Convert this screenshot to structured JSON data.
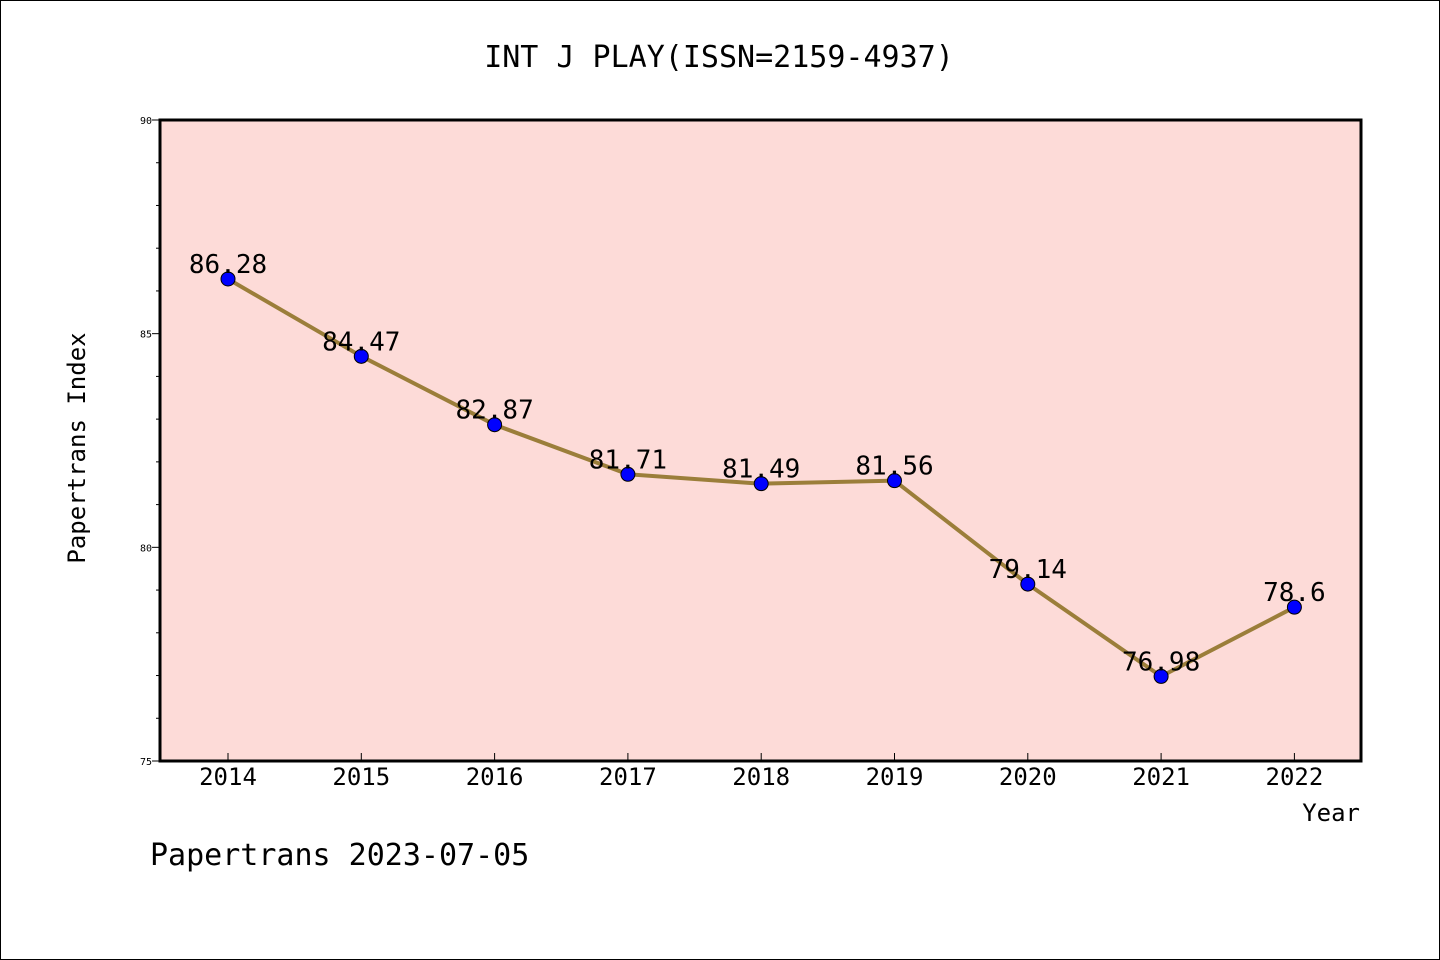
{
  "chart_data": {
    "type": "line",
    "title": "INT J PLAY(ISSN=2159-4937)",
    "xlabel": "Year",
    "ylabel": "Papertrans Index",
    "categories": [
      "2014",
      "2015",
      "2016",
      "2017",
      "2018",
      "2019",
      "2020",
      "2021",
      "2022"
    ],
    "values": [
      86.28,
      84.47,
      82.87,
      81.71,
      81.49,
      81.56,
      79.14,
      76.98,
      78.6
    ],
    "value_labels": [
      "86.28",
      "84.47",
      "82.87",
      "81.71",
      "81.49",
      "81.56",
      "79.14",
      "76.98",
      "78.6"
    ],
    "ylim": [
      75,
      90
    ],
    "yticks": [
      "75",
      "80",
      "85",
      "90"
    ],
    "grid": false,
    "legend": "none"
  },
  "footer": "Papertrans 2023-07-05",
  "colors": {
    "plot_background": "#fddbd8",
    "line": "#9b7e3a",
    "marker": "#0000ff"
  }
}
